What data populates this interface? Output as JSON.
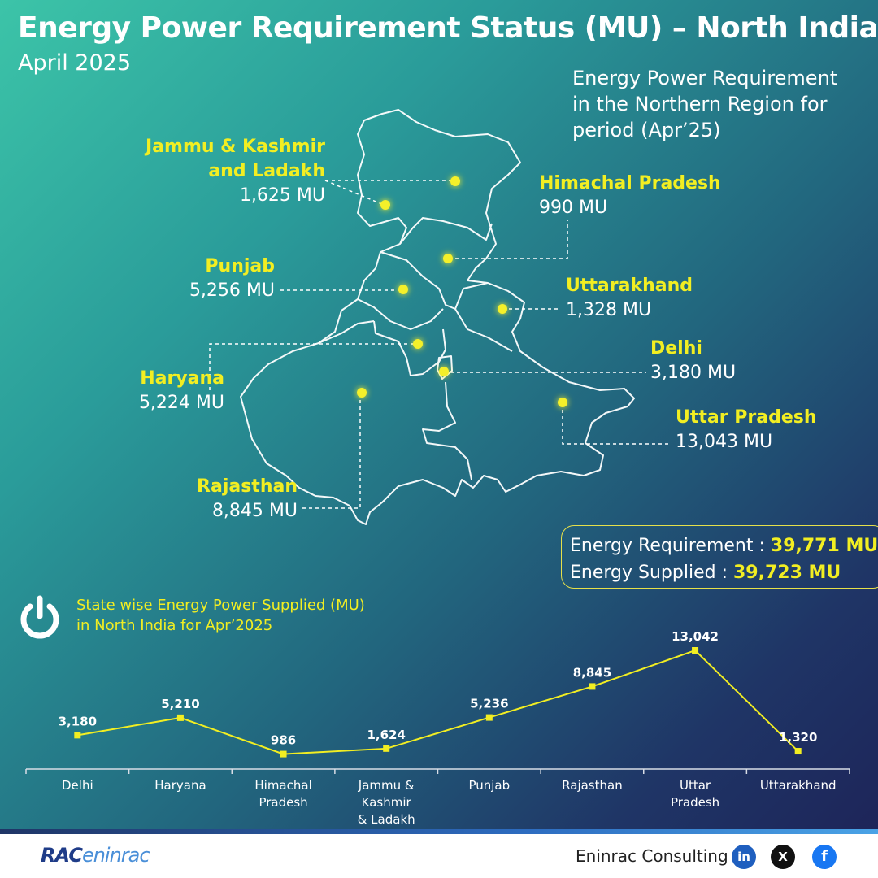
{
  "header": {
    "title": "Energy Power Requirement Status (MU) – North India",
    "subtitle": "April 2025"
  },
  "map_description": "Energy Power Requirement in the Northern Region for period (Apr’25)",
  "map_labels": [
    {
      "name_lines": [
        "Jammu & Kashmir",
        "and Ladakh"
      ],
      "value": "1,625 MU"
    },
    {
      "name_lines": [
        "Himachal Pradesh"
      ],
      "value": "990 MU"
    },
    {
      "name_lines": [
        "Punjab"
      ],
      "value": "5,256 MU"
    },
    {
      "name_lines": [
        "Uttarakhand"
      ],
      "value": "1,328 MU"
    },
    {
      "name_lines": [
        "Haryana"
      ],
      "value": "5,224 MU"
    },
    {
      "name_lines": [
        "Delhi"
      ],
      "value": "3,180 MU"
    },
    {
      "name_lines": [
        "Uttar Pradesh"
      ],
      "value": "13,043 MU"
    },
    {
      "name_lines": [
        "Rajasthan"
      ],
      "value": "8,845 MU"
    }
  ],
  "summary": {
    "requirement_label": "Energy Requirement : ",
    "requirement_value": "39,771 MU",
    "supplied_label": "Energy Supplied : ",
    "supplied_value": "39,723 MU"
  },
  "chart_title_lines": [
    "State wise Energy Power Supplied (MU)",
    "in North India for Apr’2025"
  ],
  "chart_data": {
    "type": "line",
    "title": "State wise Energy Power Supplied (MU) in North India for Apr’2025",
    "categories": [
      "Delhi",
      "Haryana",
      "Himachal Pradesh",
      "Jammu & Kashmir & Ladakh",
      "Punjab",
      "Rajasthan",
      "Uttar Pradesh",
      "Uttarakhand"
    ],
    "category_label_lines": [
      [
        "Delhi"
      ],
      [
        "Haryana"
      ],
      [
        "Himachal",
        "Pradesh"
      ],
      [
        "Jammu &",
        "Kashmir",
        "& Ladakh"
      ],
      [
        "Punjab"
      ],
      [
        "Rajasthan"
      ],
      [
        "Uttar",
        "Pradesh"
      ],
      [
        "Uttarakhand"
      ]
    ],
    "values": [
      3180,
      5210,
      986,
      1624,
      5236,
      8845,
      13042,
      1320
    ],
    "value_labels": [
      "3,180",
      "5,210",
      "986",
      "1,624",
      "5,236",
      "8,845",
      "13,042",
      "1,320"
    ],
    "ylim": [
      0,
      13042
    ],
    "grid": false,
    "color": "#f2ee22"
  },
  "footer": {
    "logo_text": "RAC",
    "logo_tail": "eninrac",
    "company": "Eninrac Consulting",
    "social": [
      {
        "name": "linkedin-icon",
        "glyph": "in"
      },
      {
        "name": "x-icon",
        "glyph": "X"
      },
      {
        "name": "facebook-icon",
        "glyph": "f"
      }
    ]
  }
}
